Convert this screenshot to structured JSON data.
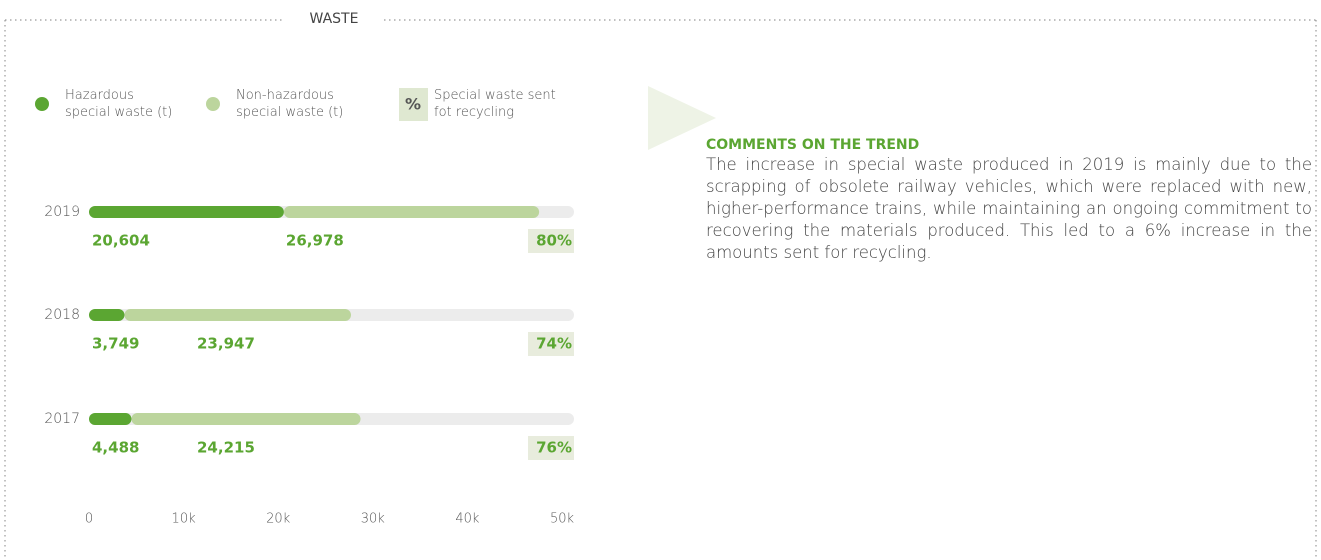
{
  "header": {
    "title": "WASTE"
  },
  "comments": {
    "title": "COMMENTS ON THE TREND",
    "text": "The increase in special waste produced in 2019 is mainly due to the scrapping of obsolete railway vehicles, which were replaced with new, higher-performance trains, while maintaining an ongoing commitment to recovering the materials produced. This led to a 6% increase in the amounts sent for recycling."
  },
  "chart_data": {
    "type": "stacked-hbar",
    "categories": [
      "2019",
      "2018",
      "2017"
    ],
    "series": [
      {
        "name": "Hazardous special waste (t)",
        "color": "#5ba632",
        "values": [
          20604,
          3749,
          4488
        ],
        "value_labels": [
          "20,604",
          "3,749",
          "4,488"
        ]
      },
      {
        "name": "Non-hazardous special waste (t)",
        "color": "#bcd59d",
        "values": [
          26978,
          23947,
          24215
        ],
        "value_labels": [
          "26,978",
          "23,947",
          "24,215"
        ]
      }
    ],
    "recycling": {
      "name": "Special waste sent fot recycling",
      "icon": "%",
      "values": [
        80,
        74,
        76
      ],
      "value_labels": [
        "80%",
        "74%",
        "76%"
      ]
    },
    "xlim": [
      0,
      50000
    ],
    "xticks": [
      0,
      {
        "value": 10000,
        "label": "10k"
      },
      {
        "value": 20000,
        "label": "20k"
      },
      {
        "value": 30000,
        "label": "30k"
      },
      {
        "value": 40000,
        "label": "40k"
      },
      {
        "value": 50000,
        "label": "50k"
      }
    ]
  }
}
